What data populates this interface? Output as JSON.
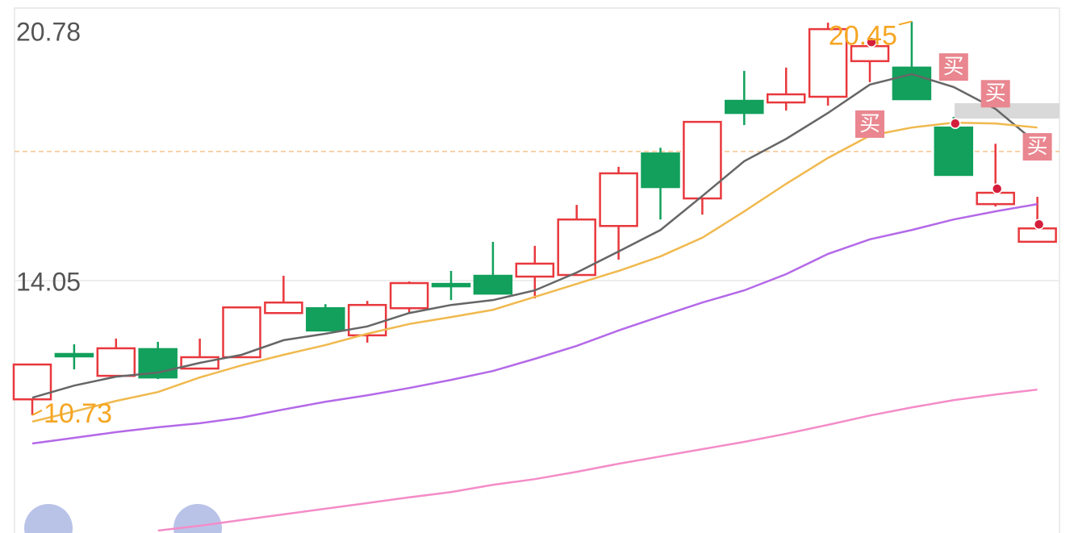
{
  "chart_data": {
    "type": "candlestick",
    "ylim": [
      7.82,
      20.78
    ],
    "yticks": [
      20.78,
      14.05
    ],
    "grid": true,
    "ref_line": 17.24,
    "up_color": "#e8383d",
    "down_color": "#12a05c",
    "high_label": 20.45,
    "low_label": 10.73,
    "label_color": "#f5a623",
    "candles": [
      {
        "open": 11.12,
        "close": 11.98,
        "high": 11.98,
        "low": 10.73
      },
      {
        "open": 12.24,
        "close": 12.2,
        "high": 12.48,
        "low": 11.86
      },
      {
        "open": 11.7,
        "close": 12.38,
        "high": 12.62,
        "low": 11.7
      },
      {
        "open": 12.36,
        "close": 11.66,
        "high": 12.54,
        "low": 11.62
      },
      {
        "open": 11.88,
        "close": 12.16,
        "high": 12.62,
        "low": 11.88
      },
      {
        "open": 12.16,
        "close": 13.39,
        "high": 13.39,
        "low": 12.16
      },
      {
        "open": 13.25,
        "close": 13.51,
        "high": 14.17,
        "low": 13.25
      },
      {
        "open": 13.37,
        "close": 12.82,
        "high": 13.47,
        "low": 12.82
      },
      {
        "open": 12.7,
        "close": 13.45,
        "high": 13.55,
        "low": 12.52
      },
      {
        "open": 13.37,
        "close": 13.99,
        "high": 14.03,
        "low": 13.25
      },
      {
        "open": 13.97,
        "close": 13.93,
        "high": 14.29,
        "low": 13.57
      },
      {
        "open": 14.17,
        "close": 13.73,
        "high": 15.01,
        "low": 13.73
      },
      {
        "open": 14.15,
        "close": 14.47,
        "high": 14.91,
        "low": 13.61
      },
      {
        "open": 14.19,
        "close": 15.56,
        "high": 15.92,
        "low": 14.19
      },
      {
        "open": 15.4,
        "close": 16.7,
        "high": 16.86,
        "low": 14.57
      },
      {
        "open": 17.19,
        "close": 16.36,
        "high": 17.33,
        "low": 15.56
      },
      {
        "open": 16.08,
        "close": 17.97,
        "high": 17.97,
        "low": 15.68
      },
      {
        "open": 18.49,
        "close": 18.19,
        "high": 19.23,
        "low": 17.89
      },
      {
        "open": 18.45,
        "close": 18.65,
        "high": 19.31,
        "low": 18.25
      },
      {
        "open": 18.59,
        "close": 20.26,
        "high": 20.42,
        "low": 18.37
      },
      {
        "open": 19.47,
        "close": 19.84,
        "high": 19.98,
        "low": 18.95
      },
      {
        "open": 19.31,
        "close": 18.53,
        "high": 20.45,
        "low": 18.53
      },
      {
        "open": 17.83,
        "close": 16.66,
        "high": 18.09,
        "low": 16.66
      },
      {
        "open": 15.94,
        "close": 16.22,
        "high": 17.43,
        "low": 15.88
      },
      {
        "open": 15.01,
        "close": 15.34,
        "high": 16.12,
        "low": 15.01
      }
    ],
    "signal_labels": [
      null,
      null,
      null,
      null,
      null,
      null,
      null,
      null,
      null,
      null,
      null,
      null,
      null,
      null,
      null,
      null,
      null,
      null,
      null,
      null,
      "买",
      null,
      "买",
      "买",
      "买"
    ],
    "series": [
      {
        "color": "#666666",
        "values": [
          11.16,
          11.46,
          11.68,
          11.78,
          12.02,
          12.22,
          12.58,
          12.74,
          12.92,
          13.25,
          13.45,
          13.57,
          13.81,
          14.25,
          14.77,
          15.3,
          16.14,
          17.0,
          17.55,
          18.19,
          18.89,
          19.15,
          18.83,
          18.29,
          17.43
        ]
      },
      {
        "color": "#f0b94e",
        "values": [
          10.57,
          10.82,
          11.08,
          11.3,
          11.66,
          11.96,
          12.22,
          12.46,
          12.74,
          12.98,
          13.15,
          13.33,
          13.65,
          13.97,
          14.29,
          14.65,
          15.11,
          15.76,
          16.44,
          17.08,
          17.63,
          17.83,
          17.95,
          17.93,
          17.83
        ]
      },
      {
        "color": "#b469e8",
        "values": [
          10.03,
          10.17,
          10.31,
          10.43,
          10.53,
          10.67,
          10.87,
          11.06,
          11.22,
          11.4,
          11.6,
          11.82,
          12.12,
          12.44,
          12.82,
          13.17,
          13.51,
          13.81,
          14.21,
          14.71,
          15.07,
          15.3,
          15.56,
          15.76,
          15.94
        ]
      },
      {
        "color": "#f48cc8",
        "values": [
          null,
          null,
          null,
          7.88,
          8.0,
          8.14,
          8.28,
          8.42,
          8.56,
          8.7,
          8.83,
          9.01,
          9.15,
          9.33,
          9.53,
          9.71,
          9.89,
          10.07,
          10.27,
          10.49,
          10.72,
          10.92,
          11.1,
          11.24,
          11.36
        ]
      }
    ]
  }
}
